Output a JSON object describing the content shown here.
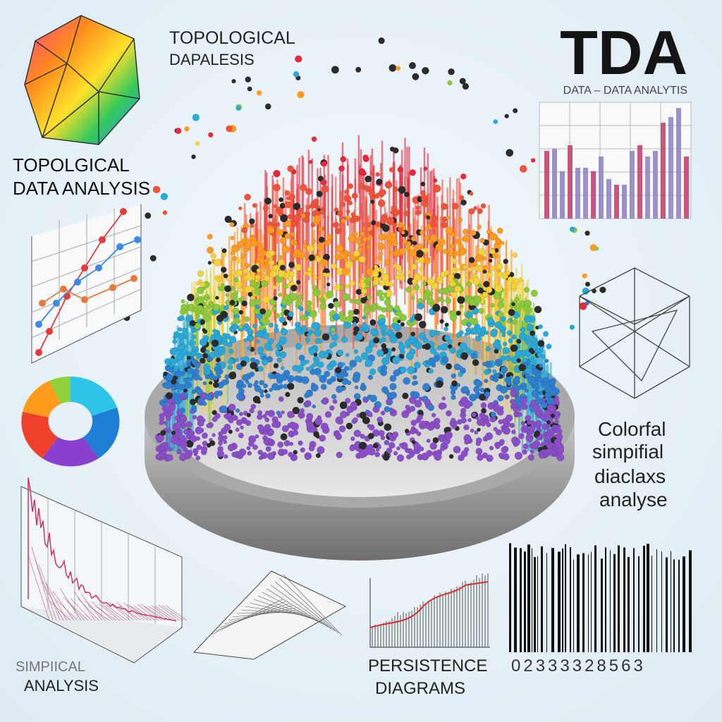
{
  "header": {
    "title": "TDA",
    "subtitle": "DATA – DATA ANALYTIS"
  },
  "labels": {
    "top_caption": [
      "TOPOLOGICAL",
      "DAPALESIS"
    ],
    "left_title": [
      "TOPOLGICAL",
      "DATA ANALYSIS"
    ],
    "right_caption": [
      "Colorfal",
      "simpifial",
      "diaclaxs",
      "analyse"
    ],
    "bottom_left": [
      "SIMPIICAL",
      "ANALYSIS"
    ],
    "bottom_center": [
      "PERSISTENCE",
      "DIAGRAMS"
    ],
    "barcode_digits": "02333328563"
  }
}
